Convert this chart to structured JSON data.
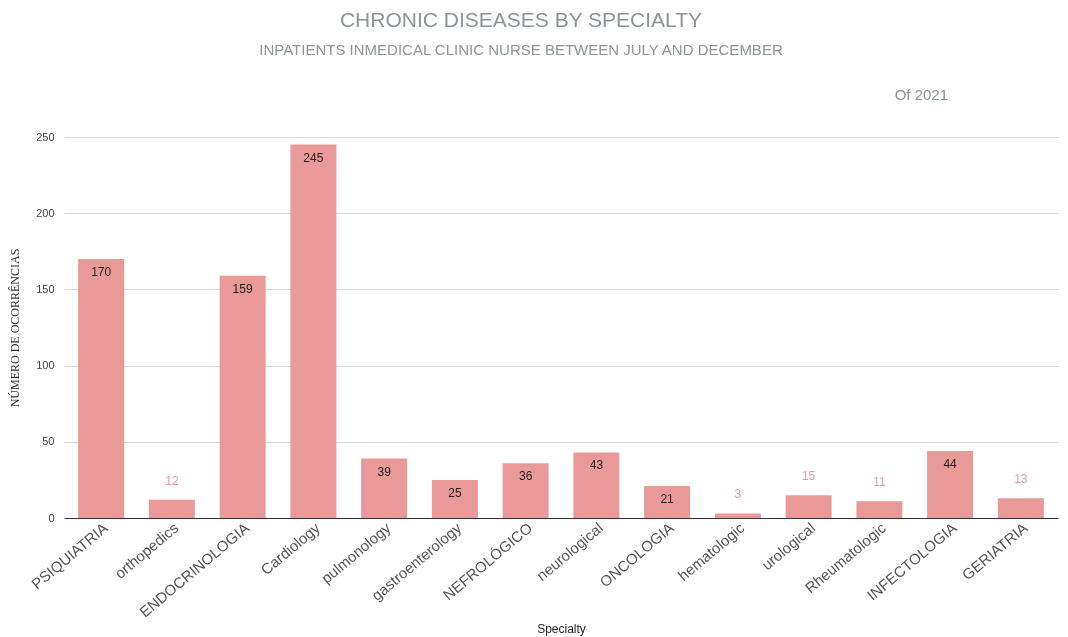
{
  "chart_data": {
    "type": "bar",
    "title": "CHRONIC DISEASES BY SPECIALTY",
    "subtitle": "INPATIENTS INMEDICAL CLINIC NURSE BETWEEN JULY AND DECEMBER",
    "annotations": [
      "Of 2021"
    ],
    "xlabel": "Specialty",
    "ylabel": "NÚMERO DE OCORRÊNCIAS",
    "categories": [
      "PSIQUIATRIA",
      "orthopedics",
      "ENDOCRINOLOGIA",
      "Cardiology",
      "pulmonology",
      "gastroenterology",
      "NEFROLÓGICO",
      "neurological",
      "ONCOLOGIA",
      "hematologic",
      "urological",
      "Rheumatologic",
      "INFECTOLOGIA",
      "GERIATRIA"
    ],
    "values": [
      170,
      12,
      159,
      245,
      39,
      25,
      36,
      43,
      21,
      3,
      15,
      11,
      44,
      13
    ],
    "color": "#ea9999",
    "ylim": [
      0,
      250
    ],
    "yticks": [
      0,
      50,
      100,
      150,
      200,
      250
    ],
    "grid": "y",
    "data_labels": true
  }
}
